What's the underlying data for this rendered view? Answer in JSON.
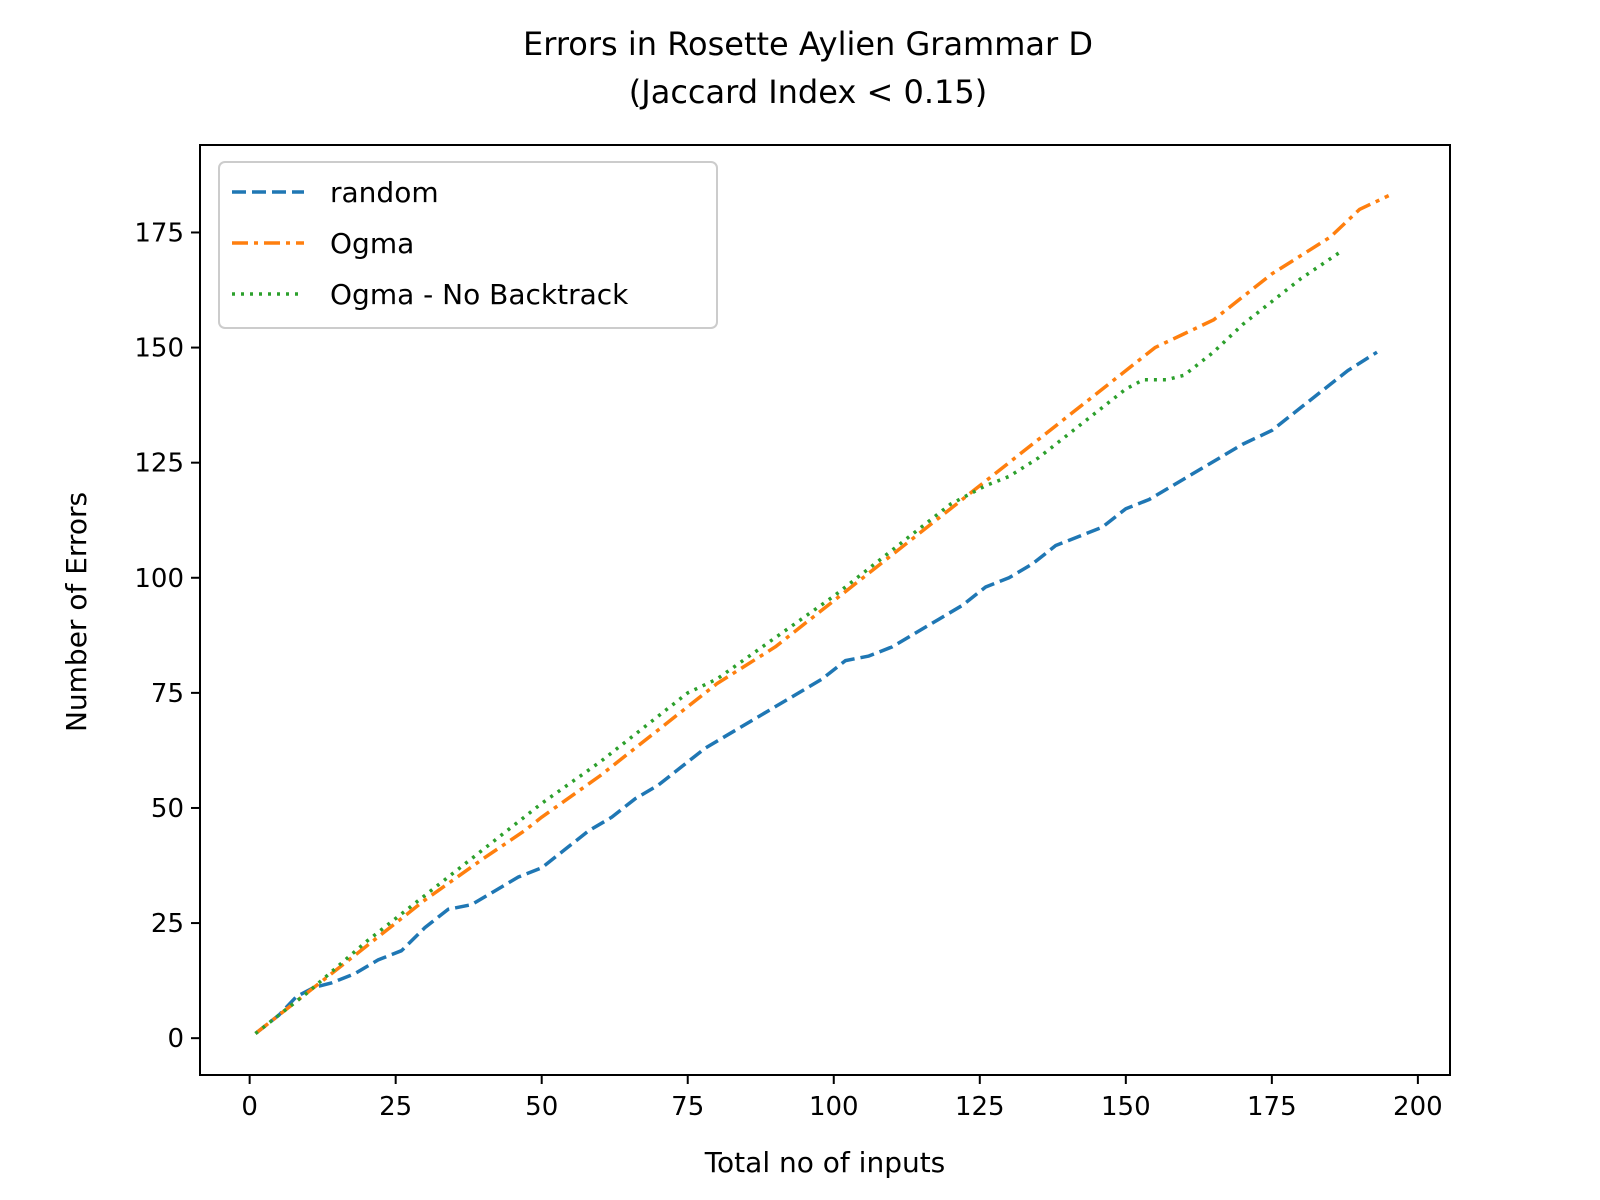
{
  "chart_data": {
    "type": "line",
    "title": "Errors in Rosette Aylien Grammar D",
    "subtitle": "(Jaccard Index < 0.15)",
    "xlabel": "Total no of inputs",
    "ylabel": "Number of Errors",
    "xlim": [
      -8.5,
      205.5
    ],
    "ylim": [
      -8,
      194
    ],
    "xticks": [
      0,
      25,
      50,
      75,
      100,
      125,
      150,
      175,
      200
    ],
    "yticks": [
      0,
      25,
      50,
      75,
      100,
      125,
      150,
      175
    ],
    "grid": false,
    "legend_position": "top-left",
    "series": [
      {
        "name": "random",
        "color": "#1f77b4",
        "style": "dashed",
        "x": [
          1,
          5,
          8,
          11,
          14,
          18,
          22,
          26,
          30,
          34,
          38,
          42,
          46,
          50,
          54,
          58,
          62,
          66,
          70,
          74,
          78,
          82,
          86,
          90,
          94,
          98,
          102,
          106,
          110,
          114,
          118,
          122,
          126,
          130,
          134,
          138,
          142,
          146,
          150,
          154,
          158,
          162,
          166,
          170,
          175,
          180,
          185,
          188,
          193
        ],
        "y": [
          1,
          5,
          9,
          11,
          12,
          14,
          17,
          19,
          24,
          28,
          29,
          32,
          35,
          37,
          41,
          45,
          48,
          52,
          55,
          59,
          63,
          66,
          69,
          72,
          75,
          78,
          82,
          83,
          85,
          88,
          91,
          94,
          98,
          100,
          103,
          107,
          109,
          111,
          115,
          117,
          120,
          123,
          126,
          129,
          132,
          137,
          142,
          145,
          149
        ]
      },
      {
        "name": "Ogma",
        "color": "#ff7f0e",
        "style": "dashdot",
        "x": [
          1,
          10,
          20,
          30,
          40,
          47,
          50,
          60,
          70,
          80,
          85,
          90,
          100,
          110,
          120,
          130,
          140,
          150,
          155,
          160,
          165,
          170,
          175,
          180,
          185,
          190,
          195
        ],
        "y": [
          1,
          10,
          20,
          30,
          39,
          45,
          48,
          57,
          67,
          77,
          81,
          85,
          95,
          105,
          115,
          125,
          135,
          145,
          150,
          153,
          156,
          161,
          166,
          170,
          174,
          180,
          183
        ]
      },
      {
        "name": "Ogma - No Backtrack",
        "color": "#2ca02c",
        "style": "dotted",
        "x": [
          1,
          10,
          20,
          30,
          40,
          50,
          60,
          70,
          75,
          80,
          90,
          100,
          110,
          120,
          126,
          130,
          135,
          140,
          145,
          150,
          153,
          157,
          160,
          165,
          170,
          175,
          180,
          187
        ],
        "y": [
          1,
          10,
          21,
          31,
          41,
          51,
          60,
          70,
          75,
          78,
          87,
          96,
          106,
          116,
          120,
          122,
          126,
          131,
          136,
          141,
          143,
          143,
          144,
          149,
          155,
          160,
          165,
          171
        ]
      }
    ]
  }
}
